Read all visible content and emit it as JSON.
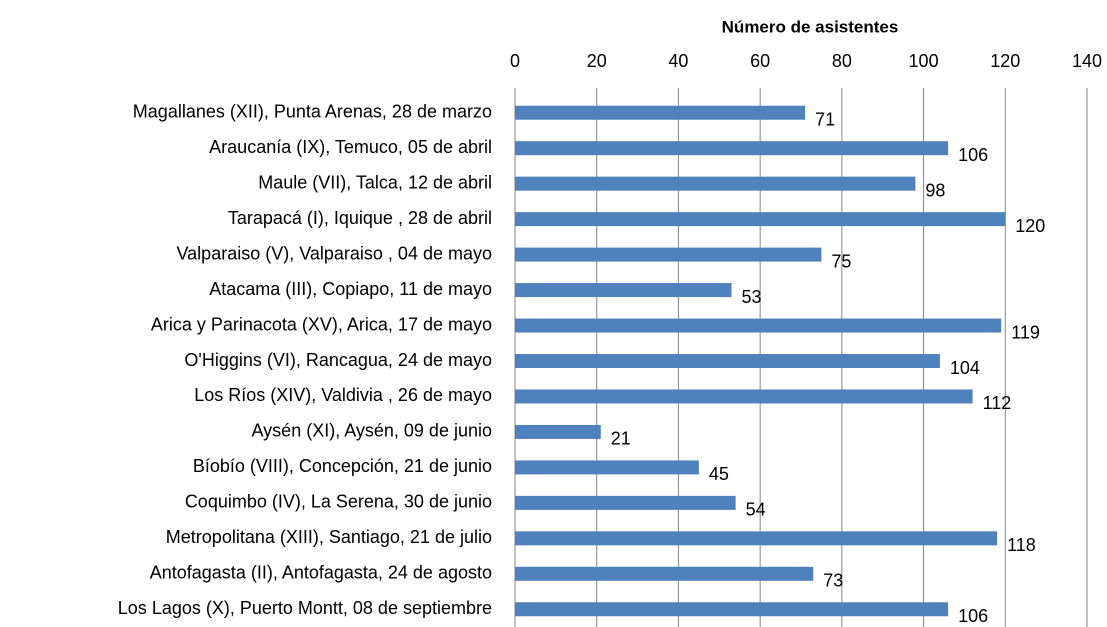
{
  "chart_data": {
    "type": "barh",
    "x_label": "Número de asistentes",
    "categories": [
      "Magallanes (XII), Punta Arenas, 28 de marzo",
      "Araucanía (IX), Temuco, 05 de abril",
      "Maule (VII), Talca, 12 de abril",
      "Tarapacá (I), Iquique , 28 de abril",
      "Valparaiso (V), Valparaiso , 04 de mayo",
      "Atacama (III), Copiapo, 11 de mayo",
      "Arica y Parinacota (XV), Arica, 17 de mayo",
      "O'Higgins (VI), Rancagua, 24 de mayo",
      "Los Ríos (XIV), Valdivia , 26 de mayo",
      "Aysén (XI), Aysén, 09 de junio",
      "Bíobío (VIII), Concepción, 21 de junio",
      "Coquimbo (IV), La Serena, 30 de junio",
      "Metropolitana (XIII), Santiago, 21 de julio",
      "Antofagasta (II), Antofagasta, 24 de agosto",
      "Los Lagos (X), Puerto Montt, 08 de septiembre"
    ],
    "values": [
      71,
      106,
      98,
      120,
      75,
      53,
      119,
      104,
      112,
      21,
      45,
      54,
      118,
      73,
      106
    ],
    "color": "#4f81bd",
    "xlim": [
      0,
      140
    ],
    "xticks": [
      0,
      20,
      40,
      60,
      80,
      100,
      120,
      140
    ],
    "grid": true
  }
}
